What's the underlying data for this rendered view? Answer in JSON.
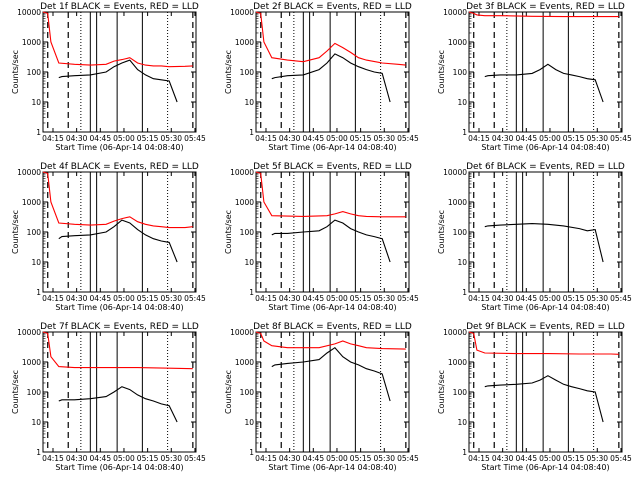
{
  "xlabel": "Start Time (06-Apr-14 04:08:40)",
  "ylabel": "Counts/sec",
  "x_ticks": [
    "04:15",
    "04:30",
    "04:45",
    "05:00",
    "05:15",
    "05:30",
    "05:45"
  ],
  "y_ticks": [
    "1",
    "10",
    "100",
    "1000",
    "10000"
  ],
  "colors": {
    "events": "#000000",
    "lld": "#ff0000"
  },
  "panel_titles": [
    "Det 1f BLACK = Events, RED = LLD",
    "Det 2f BLACK = Events, RED = LLD",
    "Det 3f BLACK = Events, RED = LLD",
    "Det 4f BLACK = Events, RED = LLD",
    "Det 5f BLACK = Events, RED = LLD",
    "Det 6f BLACK = Events, RED = LLD",
    "Det 7f BLACK = Events, RED = LLD",
    "Det 8f BLACK = Events, RED = LLD",
    "Det 9f BLACK = Events, RED = LLD"
  ],
  "chart_data": [
    {
      "type": "line",
      "title": "Det 1f BLACK = Events, RED = LLD",
      "xlabel": "Start Time (06-Apr-14 04:08:40)",
      "ylabel": "Counts/sec",
      "yscale": "log",
      "ylim": [
        1,
        10000
      ],
      "x_unit": "minutes after 04:08:40",
      "series": [
        {
          "name": "LLD",
          "color": "#ff0000",
          "x": [
            0,
            3,
            5,
            10,
            20,
            30,
            40,
            45,
            50,
            55,
            60,
            65,
            70,
            75,
            80,
            90,
            95
          ],
          "y": [
            10000,
            9000,
            1000,
            200,
            180,
            170,
            180,
            230,
            260,
            300,
            200,
            170,
            160,
            160,
            150,
            155,
            160
          ]
        },
        {
          "name": "Events",
          "color": "#000000",
          "x": [
            10,
            12,
            20,
            30,
            40,
            45,
            50,
            55,
            60,
            65,
            70,
            75,
            80,
            85
          ],
          "y": [
            65,
            70,
            75,
            80,
            100,
            150,
            200,
            250,
            120,
            80,
            60,
            55,
            50,
            10
          ]
        }
      ]
    },
    {
      "type": "line",
      "title": "Det 2f BLACK = Events, RED = LLD",
      "xlabel": "Start Time (06-Apr-14 04:08:40)",
      "ylabel": "Counts/sec",
      "yscale": "log",
      "ylim": [
        1,
        10000
      ],
      "x_unit": "minutes after 04:08:40",
      "series": [
        {
          "name": "LLD",
          "color": "#ff0000",
          "x": [
            0,
            3,
            5,
            10,
            20,
            30,
            40,
            45,
            50,
            55,
            60,
            65,
            70,
            80,
            90,
            95
          ],
          "y": [
            10000,
            9000,
            1000,
            300,
            250,
            220,
            300,
            500,
            900,
            650,
            450,
            300,
            250,
            200,
            180,
            170
          ]
        },
        {
          "name": "Events",
          "color": "#000000",
          "x": [
            10,
            12,
            20,
            30,
            40,
            45,
            50,
            55,
            60,
            65,
            70,
            75,
            80,
            85
          ],
          "y": [
            60,
            65,
            75,
            80,
            120,
            200,
            400,
            300,
            200,
            150,
            120,
            100,
            90,
            10
          ]
        }
      ]
    },
    {
      "type": "line",
      "title": "Det 3f BLACK = Events, RED = LLD",
      "xlabel": "Start Time (06-Apr-14 04:08:40)",
      "ylabel": "Counts/sec",
      "yscale": "log",
      "ylim": [
        1,
        10000
      ],
      "x_unit": "minutes after 04:08:40",
      "series": [
        {
          "name": "LLD",
          "color": "#ff0000",
          "x": [
            0,
            3,
            5,
            10,
            20,
            40,
            60,
            80,
            95
          ],
          "y": [
            10000,
            9000,
            8000,
            7500,
            7500,
            7200,
            7000,
            7000,
            7000
          ]
        },
        {
          "name": "Events",
          "color": "#000000",
          "x": [
            10,
            12,
            20,
            30,
            40,
            45,
            50,
            55,
            60,
            65,
            70,
            75,
            80,
            85
          ],
          "y": [
            70,
            75,
            80,
            80,
            90,
            120,
            180,
            120,
            90,
            80,
            70,
            60,
            55,
            10
          ]
        }
      ]
    },
    {
      "type": "line",
      "title": "Det 4f BLACK = Events, RED = LLD",
      "xlabel": "Start Time (06-Apr-14 04:08:40)",
      "ylabel": "Counts/sec",
      "yscale": "log",
      "ylim": [
        1,
        10000
      ],
      "x_unit": "minutes after 04:08:40",
      "series": [
        {
          "name": "LLD",
          "color": "#ff0000",
          "x": [
            0,
            3,
            5,
            10,
            20,
            30,
            40,
            45,
            50,
            55,
            60,
            65,
            70,
            75,
            80,
            90,
            95
          ],
          "y": [
            10000,
            9000,
            1000,
            200,
            180,
            170,
            180,
            230,
            280,
            320,
            220,
            180,
            160,
            150,
            140,
            140,
            150
          ]
        },
        {
          "name": "Events",
          "color": "#000000",
          "x": [
            10,
            12,
            20,
            30,
            40,
            45,
            50,
            55,
            60,
            65,
            70,
            75,
            80,
            85
          ],
          "y": [
            60,
            70,
            75,
            80,
            100,
            150,
            250,
            200,
            120,
            80,
            60,
            50,
            45,
            10
          ]
        }
      ]
    },
    {
      "type": "line",
      "title": "Det 5f BLACK = Events, RED = LLD",
      "xlabel": "Start Time (06-Apr-14 04:08:40)",
      "ylabel": "Counts/sec",
      "yscale": "log",
      "ylim": [
        1,
        10000
      ],
      "x_unit": "minutes after 04:08:40",
      "series": [
        {
          "name": "LLD",
          "color": "#ff0000",
          "x": [
            0,
            3,
            5,
            10,
            30,
            45,
            50,
            55,
            60,
            65,
            70,
            80,
            95
          ],
          "y": [
            10000,
            9000,
            1000,
            350,
            330,
            350,
            400,
            480,
            400,
            350,
            330,
            320,
            320
          ]
        },
        {
          "name": "Events",
          "color": "#000000",
          "x": [
            10,
            12,
            20,
            30,
            40,
            45,
            50,
            55,
            60,
            65,
            70,
            75,
            80,
            85
          ],
          "y": [
            80,
            90,
            90,
            100,
            110,
            150,
            250,
            200,
            130,
            100,
            80,
            70,
            60,
            10
          ]
        }
      ]
    },
    {
      "type": "line",
      "title": "Det 6f BLACK = Events, RED = LLD",
      "xlabel": "Start Time (06-Apr-14 04:08:40)",
      "ylabel": "Counts/sec",
      "yscale": "log",
      "ylim": [
        1,
        10000
      ],
      "x_unit": "minutes after 04:08:40",
      "series": [
        {
          "name": "Events",
          "color": "#000000",
          "x": [
            10,
            12,
            20,
            30,
            40,
            50,
            60,
            70,
            75,
            80,
            85
          ],
          "y": [
            150,
            160,
            170,
            180,
            190,
            180,
            160,
            130,
            110,
            120,
            10
          ]
        }
      ]
    },
    {
      "type": "line",
      "title": "Det 7f BLACK = Events, RED = LLD",
      "xlabel": "Start Time (06-Apr-14 04:08:40)",
      "ylabel": "Counts/sec",
      "yscale": "log",
      "ylim": [
        1,
        10000
      ],
      "x_unit": "minutes after 04:08:40",
      "series": [
        {
          "name": "LLD",
          "color": "#ff0000",
          "x": [
            0,
            3,
            5,
            10,
            20,
            40,
            60,
            80,
            95
          ],
          "y": [
            10000,
            9000,
            1500,
            700,
            650,
            650,
            650,
            620,
            600
          ]
        },
        {
          "name": "Events",
          "color": "#000000",
          "x": [
            10,
            12,
            20,
            30,
            40,
            45,
            50,
            55,
            60,
            65,
            70,
            75,
            80,
            85
          ],
          "y": [
            50,
            55,
            55,
            60,
            70,
            100,
            150,
            120,
            80,
            60,
            50,
            40,
            35,
            10
          ]
        }
      ]
    },
    {
      "type": "line",
      "title": "Det 8f BLACK = Events, RED = LLD",
      "xlabel": "Start Time (06-Apr-14 04:08:40)",
      "ylabel": "Counts/sec",
      "yscale": "log",
      "ylim": [
        1,
        10000
      ],
      "x_unit": "minutes after 04:08:40",
      "series": [
        {
          "name": "LLD",
          "color": "#ff0000",
          "x": [
            0,
            3,
            5,
            10,
            20,
            40,
            50,
            55,
            60,
            65,
            70,
            80,
            95
          ],
          "y": [
            10000,
            9000,
            5000,
            3500,
            3000,
            3000,
            4000,
            5000,
            4000,
            3500,
            3000,
            2800,
            2700
          ]
        },
        {
          "name": "Events",
          "color": "#000000",
          "x": [
            10,
            12,
            20,
            30,
            40,
            45,
            50,
            55,
            60,
            65,
            70,
            75,
            80,
            85
          ],
          "y": [
            700,
            800,
            900,
            1000,
            1200,
            2000,
            3000,
            1500,
            1000,
            800,
            600,
            500,
            400,
            50
          ]
        }
      ]
    },
    {
      "type": "line",
      "title": "Det 9f BLACK = Events, RED = LLD",
      "xlabel": "Start Time (06-Apr-14 04:08:40)",
      "ylabel": "Counts/sec",
      "yscale": "log",
      "ylim": [
        1,
        10000
      ],
      "x_unit": "minutes after 04:08:40",
      "series": [
        {
          "name": "LLD",
          "color": "#ff0000",
          "x": [
            0,
            3,
            5,
            10,
            30,
            50,
            70,
            90,
            95
          ],
          "y": [
            10000,
            9000,
            2500,
            2000,
            1900,
            1900,
            1850,
            1850,
            1800
          ]
        },
        {
          "name": "Events",
          "color": "#000000",
          "x": [
            10,
            12,
            20,
            30,
            40,
            45,
            50,
            55,
            60,
            65,
            70,
            75,
            80,
            85
          ],
          "y": [
            150,
            160,
            170,
            180,
            200,
            250,
            350,
            250,
            180,
            150,
            130,
            110,
            100,
            10
          ]
        }
      ]
    }
  ]
}
